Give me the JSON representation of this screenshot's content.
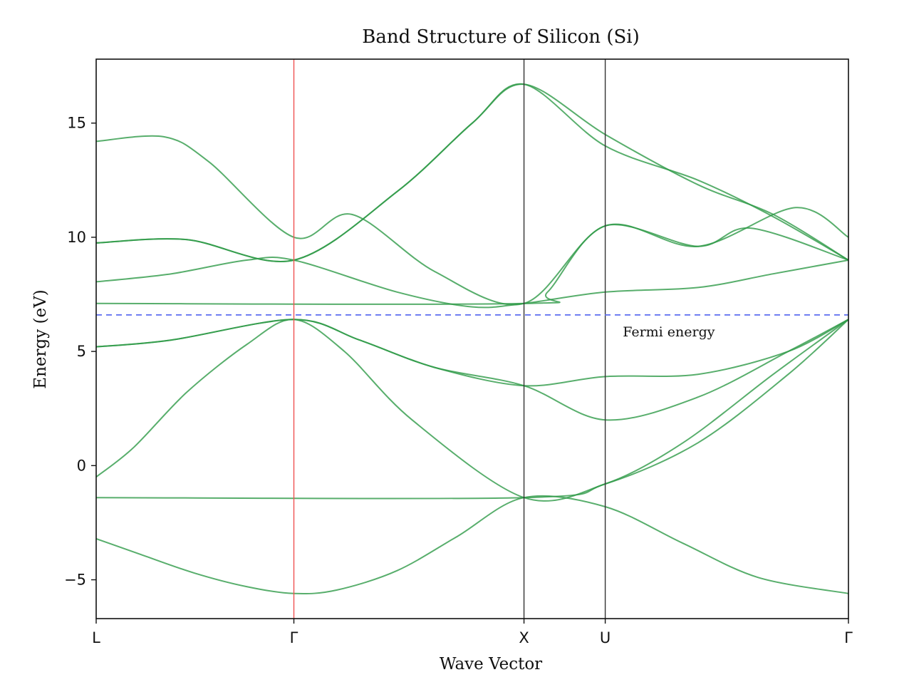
{
  "chart_data": {
    "type": "line",
    "title": "Band Structure of Silicon (Si)",
    "xlabel": "Wave Vector",
    "ylabel": "Energy (eV)",
    "ylim": [
      -6.7,
      17.8
    ],
    "yticks": [
      -5,
      0,
      5,
      10,
      15
    ],
    "ytick_labels": [
      "−5",
      "0",
      "5",
      "10",
      "15"
    ],
    "xlim": [
      0,
      1
    ],
    "kpoints": [
      {
        "label": "L",
        "x": 0.0
      },
      {
        "label": "Γ",
        "x": 0.2628
      },
      {
        "label": "X",
        "x": 0.5687
      },
      {
        "label": "U",
        "x": 0.6767
      },
      {
        "label": "Γ",
        "x": 1.0
      }
    ],
    "vlines": [
      {
        "x": 0.2628,
        "color": "#f05252"
      },
      {
        "x": 0.5687,
        "color": "#333333"
      },
      {
        "x": 0.6767,
        "color": "#333333"
      }
    ],
    "fermi_energy": 6.6,
    "fermi_color": "#5b6cf0",
    "fermi_label": "Fermi energy",
    "band_color": "#2e9a47",
    "series": [
      {
        "x": [
          0,
          0.06,
          0.13,
          0.2,
          0.2628,
          0.32,
          0.4,
          0.48,
          0.5687,
          0.6767,
          0.78,
          0.88,
          1.0
        ],
        "values": [
          -3.2,
          -3.9,
          -4.7,
          -5.3,
          -5.6,
          -5.45,
          -4.6,
          -3.1,
          -1.4,
          -1.8,
          -3.4,
          -4.9,
          -5.6
        ]
      },
      {
        "x": [
          0,
          0.05,
          0.12,
          0.2,
          0.2628,
          0.33,
          0.42,
          0.5687,
          0.6767,
          0.78,
          0.9,
          1.0
        ],
        "values": [
          -0.5,
          0.8,
          3.2,
          5.3,
          6.4,
          5.0,
          2.0,
          -1.4,
          -0.8,
          1.0,
          4.0,
          6.4
        ]
      },
      {
        "x": [
          0,
          0.5687,
          0.6767,
          0.8,
          0.92,
          1.0
        ],
        "values": [
          -1.4,
          -1.4,
          -0.8,
          1.0,
          4.0,
          6.4
        ]
      },
      {
        "x": [
          0,
          0.1,
          0.2628,
          0.35,
          0.45,
          0.5687,
          0.6767,
          0.8,
          0.92,
          1.0
        ],
        "values": [
          5.2,
          5.5,
          6.4,
          5.5,
          4.3,
          3.5,
          2.0,
          3.0,
          5.0,
          6.4
        ]
      },
      {
        "x": [
          0,
          0.1,
          0.2628,
          0.35,
          0.45,
          0.5687,
          0.6767,
          0.8,
          0.92,
          1.0
        ],
        "values": [
          5.2,
          5.5,
          6.4,
          5.5,
          4.3,
          3.5,
          3.9,
          4.0,
          5.0,
          6.4
        ]
      },
      {
        "x": [
          0,
          0.1,
          0.2,
          0.2628,
          0.4,
          0.5,
          0.5687,
          0.6767,
          0.8,
          0.9,
          1.0
        ],
        "values": [
          8.05,
          8.4,
          9.0,
          9.0,
          7.6,
          6.95,
          7.1,
          7.6,
          7.8,
          8.4,
          9.0
        ]
      },
      {
        "x": [
          0,
          0.12,
          0.2628,
          0.4,
          0.5,
          0.5687,
          0.6767,
          0.8,
          0.9,
          1.0
        ],
        "values": [
          9.75,
          9.9,
          9.0,
          12.0,
          15.0,
          16.7,
          14.0,
          12.5,
          10.9,
          9.0
        ]
      },
      {
        "x": [
          0,
          0.12,
          0.2628,
          0.4,
          0.5,
          0.5687,
          0.6767,
          0.8,
          0.9,
          1.0
        ],
        "values": [
          9.75,
          9.9,
          9.0,
          12.0,
          15.0,
          16.7,
          14.5,
          12.3,
          11.0,
          9.0
        ]
      },
      {
        "x": [
          0,
          0.09,
          0.15,
          0.2628,
          0.34,
          0.45,
          0.5687,
          0.6767,
          0.8,
          0.93,
          1.0
        ],
        "values": [
          14.2,
          14.4,
          13.3,
          10.0,
          11.0,
          8.5,
          7.1,
          10.5,
          9.6,
          11.3,
          10.0
        ]
      },
      {
        "x": [
          0,
          0.5687,
          0.6,
          0.6767,
          0.8,
          0.87,
          1.0
        ],
        "values": [
          7.1,
          7.1,
          7.6,
          10.5,
          9.6,
          10.4,
          9.0
        ]
      }
    ]
  }
}
